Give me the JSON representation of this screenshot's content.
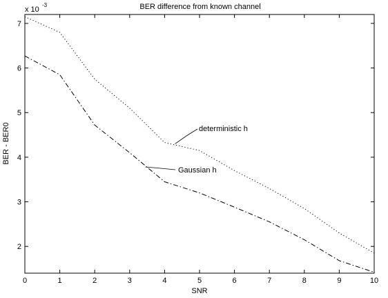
{
  "chart_data": {
    "type": "line",
    "title": "BER difference from known channel",
    "xlabel": "SNR",
    "ylabel": "BER - BER0",
    "y_scale_label": {
      "base": "x 10",
      "exponent": "-3"
    },
    "xlim": [
      0,
      10
    ],
    "ylim": [
      1.4,
      7.2
    ],
    "x_ticks": [
      0,
      1,
      2,
      3,
      4,
      5,
      6,
      7,
      8,
      9,
      10
    ],
    "y_ticks": [
      2,
      3,
      4,
      5,
      6,
      7
    ],
    "grid": false,
    "legend": "none",
    "series": [
      {
        "name": "deterministic h",
        "style": "dotted",
        "color": "#000000",
        "x": [
          0,
          1,
          2,
          3,
          4,
          5,
          6,
          7,
          8,
          9,
          10
        ],
        "y": [
          7.15,
          6.8,
          5.75,
          5.1,
          4.33,
          4.15,
          3.7,
          3.3,
          2.85,
          2.3,
          1.85
        ]
      },
      {
        "name": "Gaussian h",
        "style": "dashdot",
        "color": "#000000",
        "x": [
          0,
          1,
          2,
          3,
          4,
          5,
          6,
          7,
          8,
          9,
          10
        ],
        "y": [
          6.27,
          5.85,
          4.72,
          4.1,
          3.45,
          3.2,
          2.88,
          2.55,
          2.15,
          1.68,
          1.42
        ]
      }
    ],
    "annotations": [
      {
        "text": "deterministic h",
        "series": 0,
        "x": 4.3,
        "y": 4.3
      },
      {
        "text": "Gaussian h",
        "series": 1,
        "x": 3.45,
        "y": 3.78
      }
    ]
  }
}
